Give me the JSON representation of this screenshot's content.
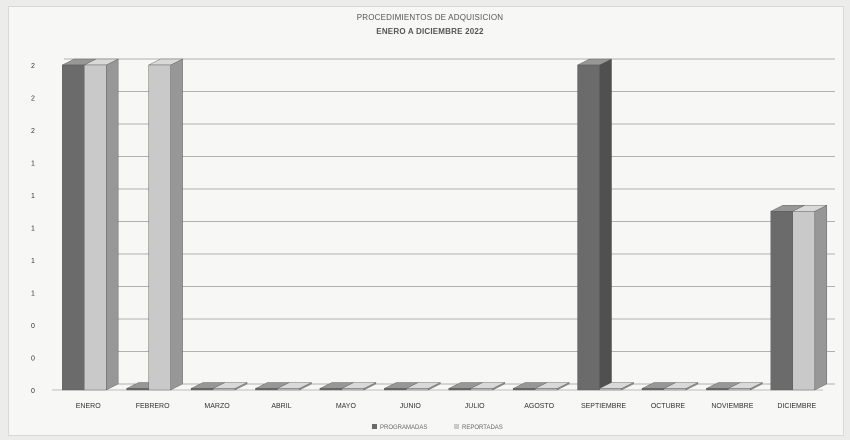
{
  "chart_data": {
    "type": "bar",
    "title": "PROCEDIMIENTOS DE ADQUISICION",
    "subtitle": "ENERO A DICIEMBRE 2022",
    "categories": [
      "ENERO",
      "FEBRERO",
      "MARZO",
      "ABRIL",
      "MAYO",
      "JUNIO",
      "JULIO",
      "AGOSTO",
      "SEPTIEMBRE",
      "OCTUBRE",
      "NOVIEMBRE",
      "DICIEMBRE"
    ],
    "series": [
      {
        "name": "PROGRAMADAS",
        "color": "#6b6b6b",
        "values": [
          2,
          0,
          0,
          0,
          0,
          0,
          0,
          0,
          2,
          0,
          0,
          1.1
        ]
      },
      {
        "name": "REPORTADAS",
        "color": "#c9c9c9",
        "values": [
          2,
          2,
          0,
          0,
          0,
          0,
          0,
          0,
          0,
          0,
          0,
          1.1
        ]
      }
    ],
    "y_tick_labels": [
      "0",
      "0",
      "0",
      "1",
      "1",
      "1",
      "1",
      "1",
      "2",
      "2",
      "2"
    ],
    "ylim": [
      0,
      2
    ],
    "grid": true,
    "legend": "bottom"
  }
}
